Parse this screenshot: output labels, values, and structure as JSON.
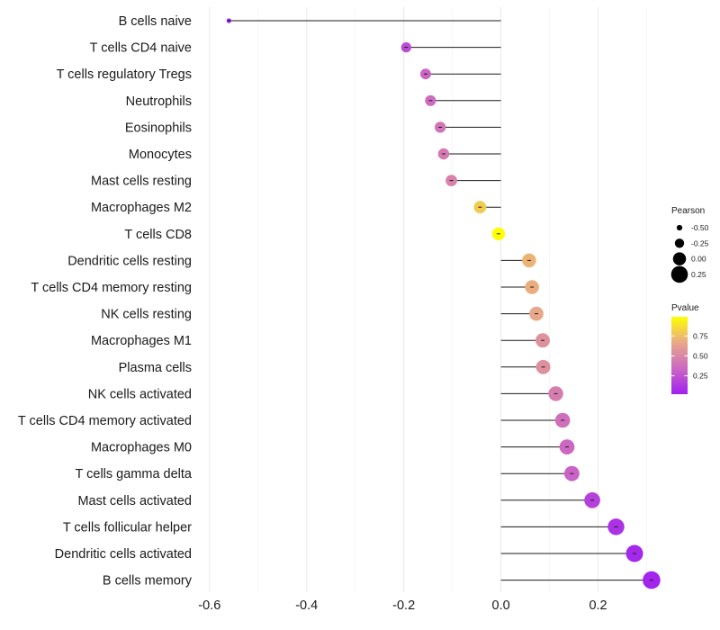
{
  "chart_data": {
    "type": "lollipop",
    "title": "",
    "xlabel": "",
    "ylabel": "",
    "xlim": [
      -0.62,
      0.325
    ],
    "x_ticks": [
      -0.6,
      -0.4,
      -0.2,
      0.0,
      0.2
    ],
    "x_tick_labels": [
      "-0.6",
      "-0.4",
      "-0.2",
      "0.0",
      "0.2"
    ],
    "grid": true,
    "categories": [
      "B cells naive",
      "T cells CD4 naive",
      "T cells regulatory  Tregs ",
      "Neutrophils",
      "Eosinophils",
      "Monocytes",
      "Mast cells resting",
      "Macrophages M2",
      "T cells CD8",
      "Dendritic cells resting",
      "T cells CD4 memory resting",
      "NK cells resting",
      "Macrophages M1",
      "Plasma cells",
      "NK cells activated",
      "T cells CD4 memory activated",
      "Macrophages M0",
      "T cells gamma delta",
      "Mast cells activated",
      "T cells follicular helper",
      "Dendritic cells activated",
      "B cells memory"
    ],
    "pearson": [
      -0.56,
      -0.195,
      -0.155,
      -0.145,
      -0.125,
      -0.118,
      -0.102,
      -0.043,
      -0.005,
      0.058,
      0.064,
      0.073,
      0.086,
      0.087,
      0.113,
      0.127,
      0.136,
      0.146,
      0.188,
      0.237,
      0.275,
      0.31
    ],
    "pvalue": [
      0.02,
      0.22,
      0.33,
      0.36,
      0.41,
      0.43,
      0.47,
      0.8,
      0.99,
      0.71,
      0.69,
      0.66,
      0.55,
      0.55,
      0.45,
      0.38,
      0.34,
      0.32,
      0.17,
      0.1,
      0.06,
      0.04
    ],
    "legend_size": {
      "title": "Pearson",
      "labels": [
        "-0.50",
        "-0.25",
        "0.00",
        "0.25"
      ],
      "values": [
        -0.5,
        -0.25,
        0.0,
        0.25
      ]
    },
    "legend_color": {
      "title": "Pvalue",
      "labels": [
        "0.75",
        "0.50",
        "0.25"
      ],
      "values": [
        0.75,
        0.5,
        0.25
      ],
      "range": [
        0.02,
        0.99
      ],
      "colors": [
        "#a020f0",
        "#cc68c2",
        "#e8a888",
        "#ffff00"
      ]
    },
    "legend_position": "right"
  }
}
